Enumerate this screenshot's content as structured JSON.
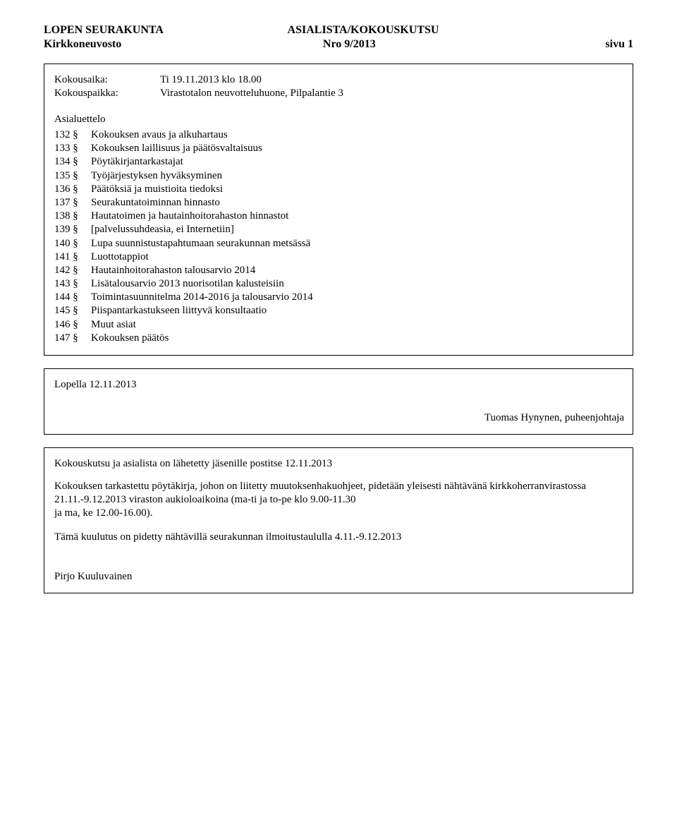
{
  "header": {
    "org": "LOPEN SEURAKUNTA",
    "doc_type": "ASIALISTA/KOKOUSKUTSU",
    "body": "Kirkkoneuvosto",
    "nro": "Nro 9/2013",
    "page": "sivu 1"
  },
  "meeting": {
    "time_label": "Kokousaika:",
    "time_value": "Ti 19.11.2013 klo 18.00",
    "place_label": "Kokouspaikka:",
    "place_value": "Virastotalon neuvotteluhuone, Pilpalantie 3"
  },
  "agenda": {
    "title": "Asialuettelo",
    "items": [
      {
        "num": "132 §",
        "text": "Kokouksen avaus ja alkuhartaus"
      },
      {
        "num": "133 §",
        "text": "Kokouksen laillisuus ja päätösvaltaisuus"
      },
      {
        "num": "134 §",
        "text": "Pöytäkirjantarkastajat"
      },
      {
        "num": "135 §",
        "text": "Työjärjestyksen hyväksyminen"
      },
      {
        "num": "136 §",
        "text": "Päätöksiä ja muistioita tiedoksi"
      },
      {
        "num": "137 §",
        "text": "Seurakuntatoiminnan hinnasto"
      },
      {
        "num": "138 §",
        "text": "Hautatoimen ja hautainhoitorahaston hinnastot"
      },
      {
        "num": "139 §",
        "text": "[palvelussuhdeasia, ei Internetiin]"
      },
      {
        "num": "140 §",
        "text": "Lupa suunnistustapahtumaan seurakunnan metsässä"
      },
      {
        "num": "141 §",
        "text": "Luottotappiot"
      },
      {
        "num": "142 §",
        "text": "Hautainhoitorahaston talousarvio 2014"
      },
      {
        "num": "143 §",
        "text": "Lisätalousarvio 2013 nuorisotilan kalusteisiin"
      },
      {
        "num": "144 §",
        "text": "Toimintasuunnitelma 2014-2016 ja talousarvio 2014"
      },
      {
        "num": "145 §",
        "text": "Piispantarkastukseen liittyvä konsultaatio"
      },
      {
        "num": "146 §",
        "text": "Muut asiat"
      },
      {
        "num": "147 §",
        "text": "Kokouksen päätös"
      }
    ]
  },
  "signature_box": {
    "place_date": "Lopella 12.11.2013",
    "chairperson": "Tuomas Hynynen, puheenjohtaja"
  },
  "notice": {
    "sent_line": "Kokouskutsu ja asialista on lähetetty jäsenille postitse 12.11.2013",
    "para1_a": "Kokouksen tarkastettu pöytäkirja, johon on liitetty muutoksenhakuohjeet, pidetään yleisesti nähtävänä kirkkoherranvirastossa 21.11.-9.12.2013 viraston aukioloaikoina (ma-ti ja to-pe klo 9.00-11.30",
    "para1_b": "ja ma, ke 12.00-16.00).",
    "para2": "Tämä kuulutus on pidetty nähtävillä seurakunnan ilmoitustaululla 4.11.-9.12.2013",
    "signer": "Pirjo Kuuluvainen"
  }
}
